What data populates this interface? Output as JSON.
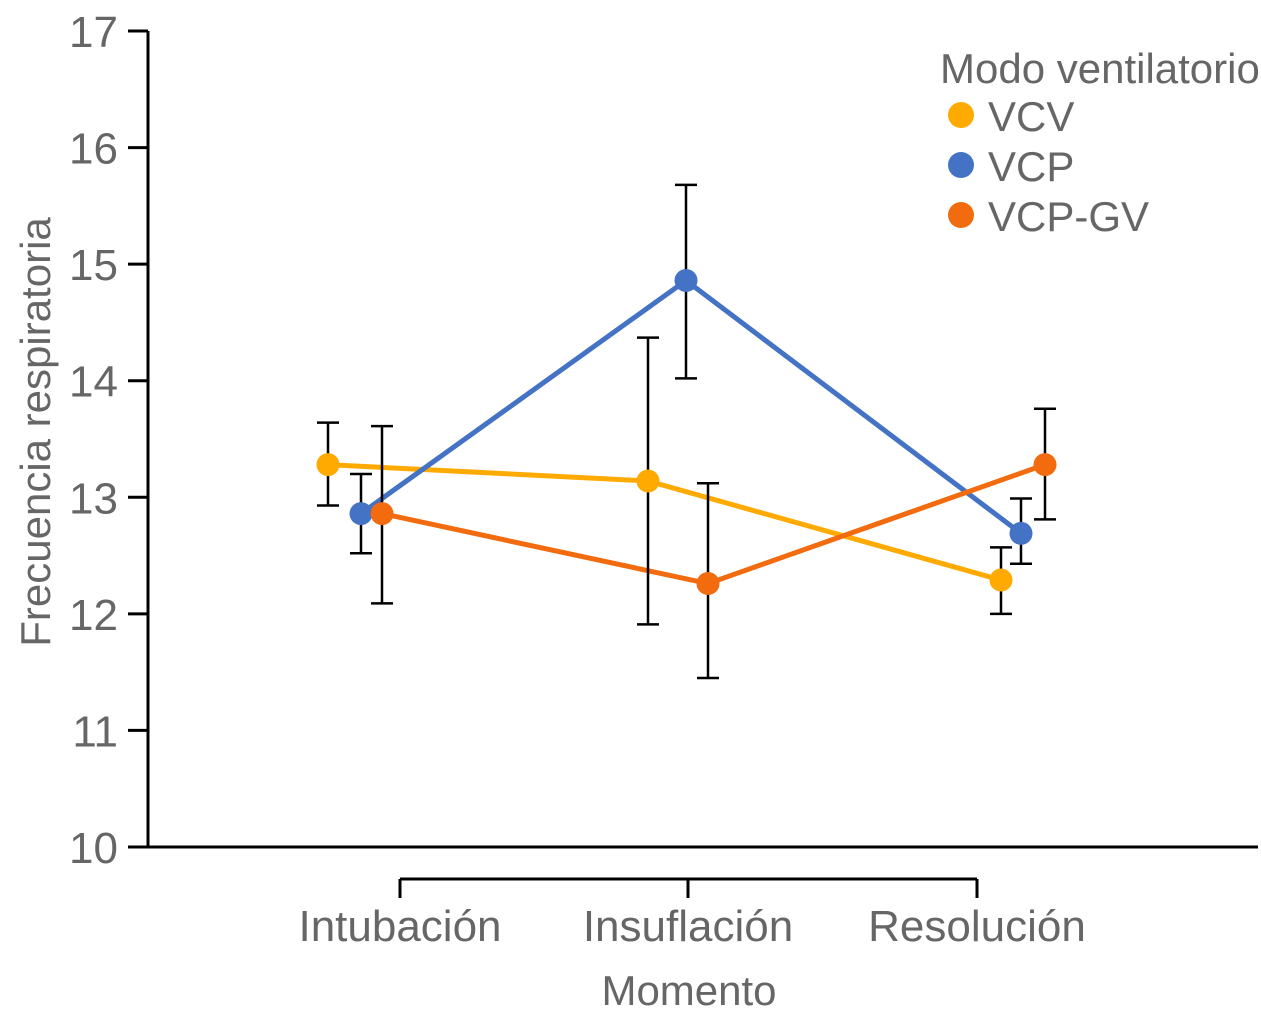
{
  "chart_data": {
    "type": "line",
    "title": "",
    "xlabel": "Momento",
    "ylabel": "Frecuencia respiratoria",
    "categories": [
      "Intubación",
      "Insuflación",
      "Resolución"
    ],
    "ylim": [
      10,
      17
    ],
    "yticks": [
      10,
      11,
      12,
      13,
      14,
      15,
      16,
      17
    ],
    "grid": false,
    "legend": {
      "title": "Modo ventilatorio",
      "placement": "top-right"
    },
    "series": [
      {
        "name": "VCV",
        "color": "#FFAA00",
        "values": [
          13.28,
          13.14,
          12.29
        ],
        "error_low": [
          12.93,
          11.91,
          12.0
        ],
        "error_high": [
          13.64,
          14.37,
          12.57
        ]
      },
      {
        "name": "VCP",
        "color": "#4472C4",
        "values": [
          12.86,
          14.86,
          12.69
        ],
        "error_low": [
          12.52,
          14.02,
          12.43
        ],
        "error_high": [
          13.2,
          15.68,
          12.99
        ]
      },
      {
        "name": "VCP-GV",
        "color": "#F26B0F",
        "values": [
          12.86,
          12.26,
          13.28
        ],
        "error_low": [
          12.09,
          11.45,
          12.81
        ],
        "error_high": [
          13.61,
          13.12,
          13.76
        ]
      }
    ]
  }
}
